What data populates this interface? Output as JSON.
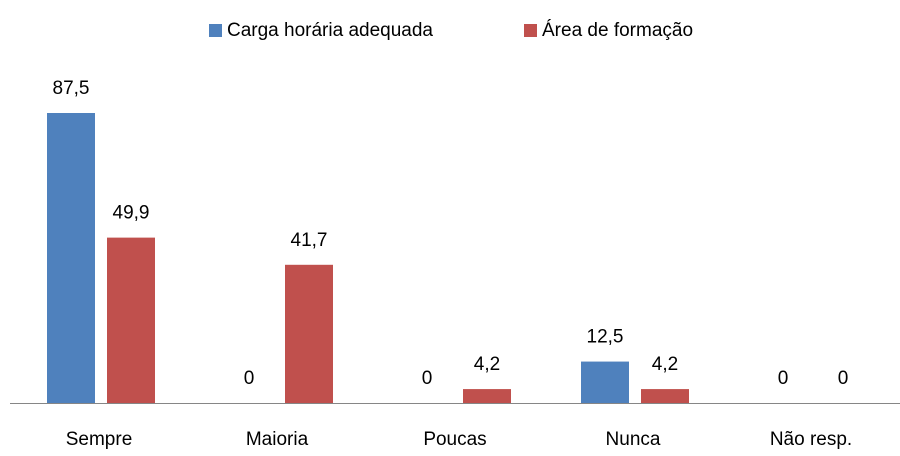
{
  "chart_data": {
    "type": "bar",
    "categories": [
      "Sempre",
      "Maioria",
      "Poucas",
      "Nunca",
      "Não resp."
    ],
    "series": [
      {
        "name": "Carga horária adequada",
        "color": "#4f81bd",
        "values": [
          87.5,
          0,
          0,
          12.5,
          0
        ],
        "value_labels": [
          "87,5",
          "0",
          "0",
          "12,5",
          "0"
        ]
      },
      {
        "name": "Área de formação",
        "color": "#c0504d",
        "values": [
          49.9,
          41.7,
          4.2,
          4.2,
          0
        ],
        "value_labels": [
          "49,9",
          "41,7",
          "4,2",
          "4,2",
          "0"
        ]
      }
    ],
    "legend": "top"
  }
}
